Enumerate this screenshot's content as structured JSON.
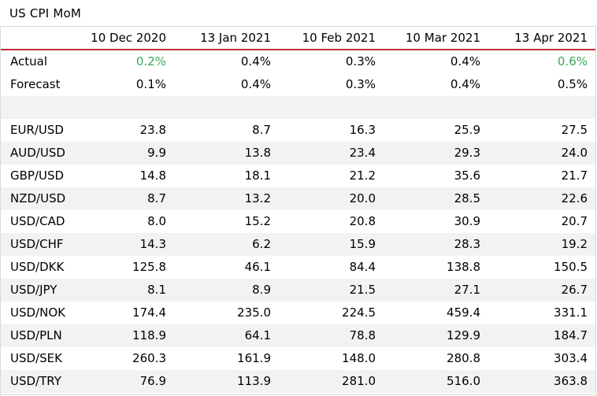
{
  "title": "US CPI MoM",
  "headers": [
    "10 Dec 2020",
    "13 Jan 2021",
    "10 Feb 2021",
    "10 Mar 2021",
    "13 Apr 2021"
  ],
  "actual": {
    "label": "Actual",
    "values": [
      "0.2%",
      "0.4%",
      "0.3%",
      "0.4%",
      "0.6%"
    ],
    "highlight": [
      true,
      false,
      false,
      false,
      true
    ]
  },
  "forecast": {
    "label": "Forecast",
    "values": [
      "0.1%",
      "0.4%",
      "0.3%",
      "0.4%",
      "0.5%"
    ]
  },
  "colors": {
    "accent_line": "#c0303a",
    "positive": "#3aa857",
    "row_shade": "#f2f2f2"
  },
  "pairs": [
    {
      "label": "EUR/USD",
      "values": [
        "23.8",
        "8.7",
        "16.3",
        "25.9",
        "27.5"
      ]
    },
    {
      "label": "AUD/USD",
      "values": [
        "9.9",
        "13.8",
        "23.4",
        "29.3",
        "24.0"
      ]
    },
    {
      "label": "GBP/USD",
      "values": [
        "14.8",
        "18.1",
        "21.2",
        "35.6",
        "21.7"
      ]
    },
    {
      "label": "NZD/USD",
      "values": [
        "8.7",
        "13.2",
        "20.0",
        "28.5",
        "22.6"
      ]
    },
    {
      "label": "USD/CAD",
      "values": [
        "8.0",
        "15.2",
        "20.8",
        "30.9",
        "20.7"
      ]
    },
    {
      "label": "USD/CHF",
      "values": [
        "14.3",
        "6.2",
        "15.9",
        "28.3",
        "19.2"
      ]
    },
    {
      "label": "USD/DKK",
      "values": [
        "125.8",
        "46.1",
        "84.4",
        "138.8",
        "150.5"
      ]
    },
    {
      "label": "USD/JPY",
      "values": [
        "8.1",
        "8.9",
        "21.5",
        "27.1",
        "26.7"
      ]
    },
    {
      "label": "USD/NOK",
      "values": [
        "174.4",
        "235.0",
        "224.5",
        "459.4",
        "331.1"
      ]
    },
    {
      "label": "USD/PLN",
      "values": [
        "118.9",
        "64.1",
        "78.8",
        "129.9",
        "184.7"
      ]
    },
    {
      "label": "USD/SEK",
      "values": [
        "260.3",
        "161.9",
        "148.0",
        "280.8",
        "303.4"
      ]
    },
    {
      "label": "USD/TRY",
      "values": [
        "76.9",
        "113.9",
        "281.0",
        "516.0",
        "363.8"
      ]
    }
  ]
}
